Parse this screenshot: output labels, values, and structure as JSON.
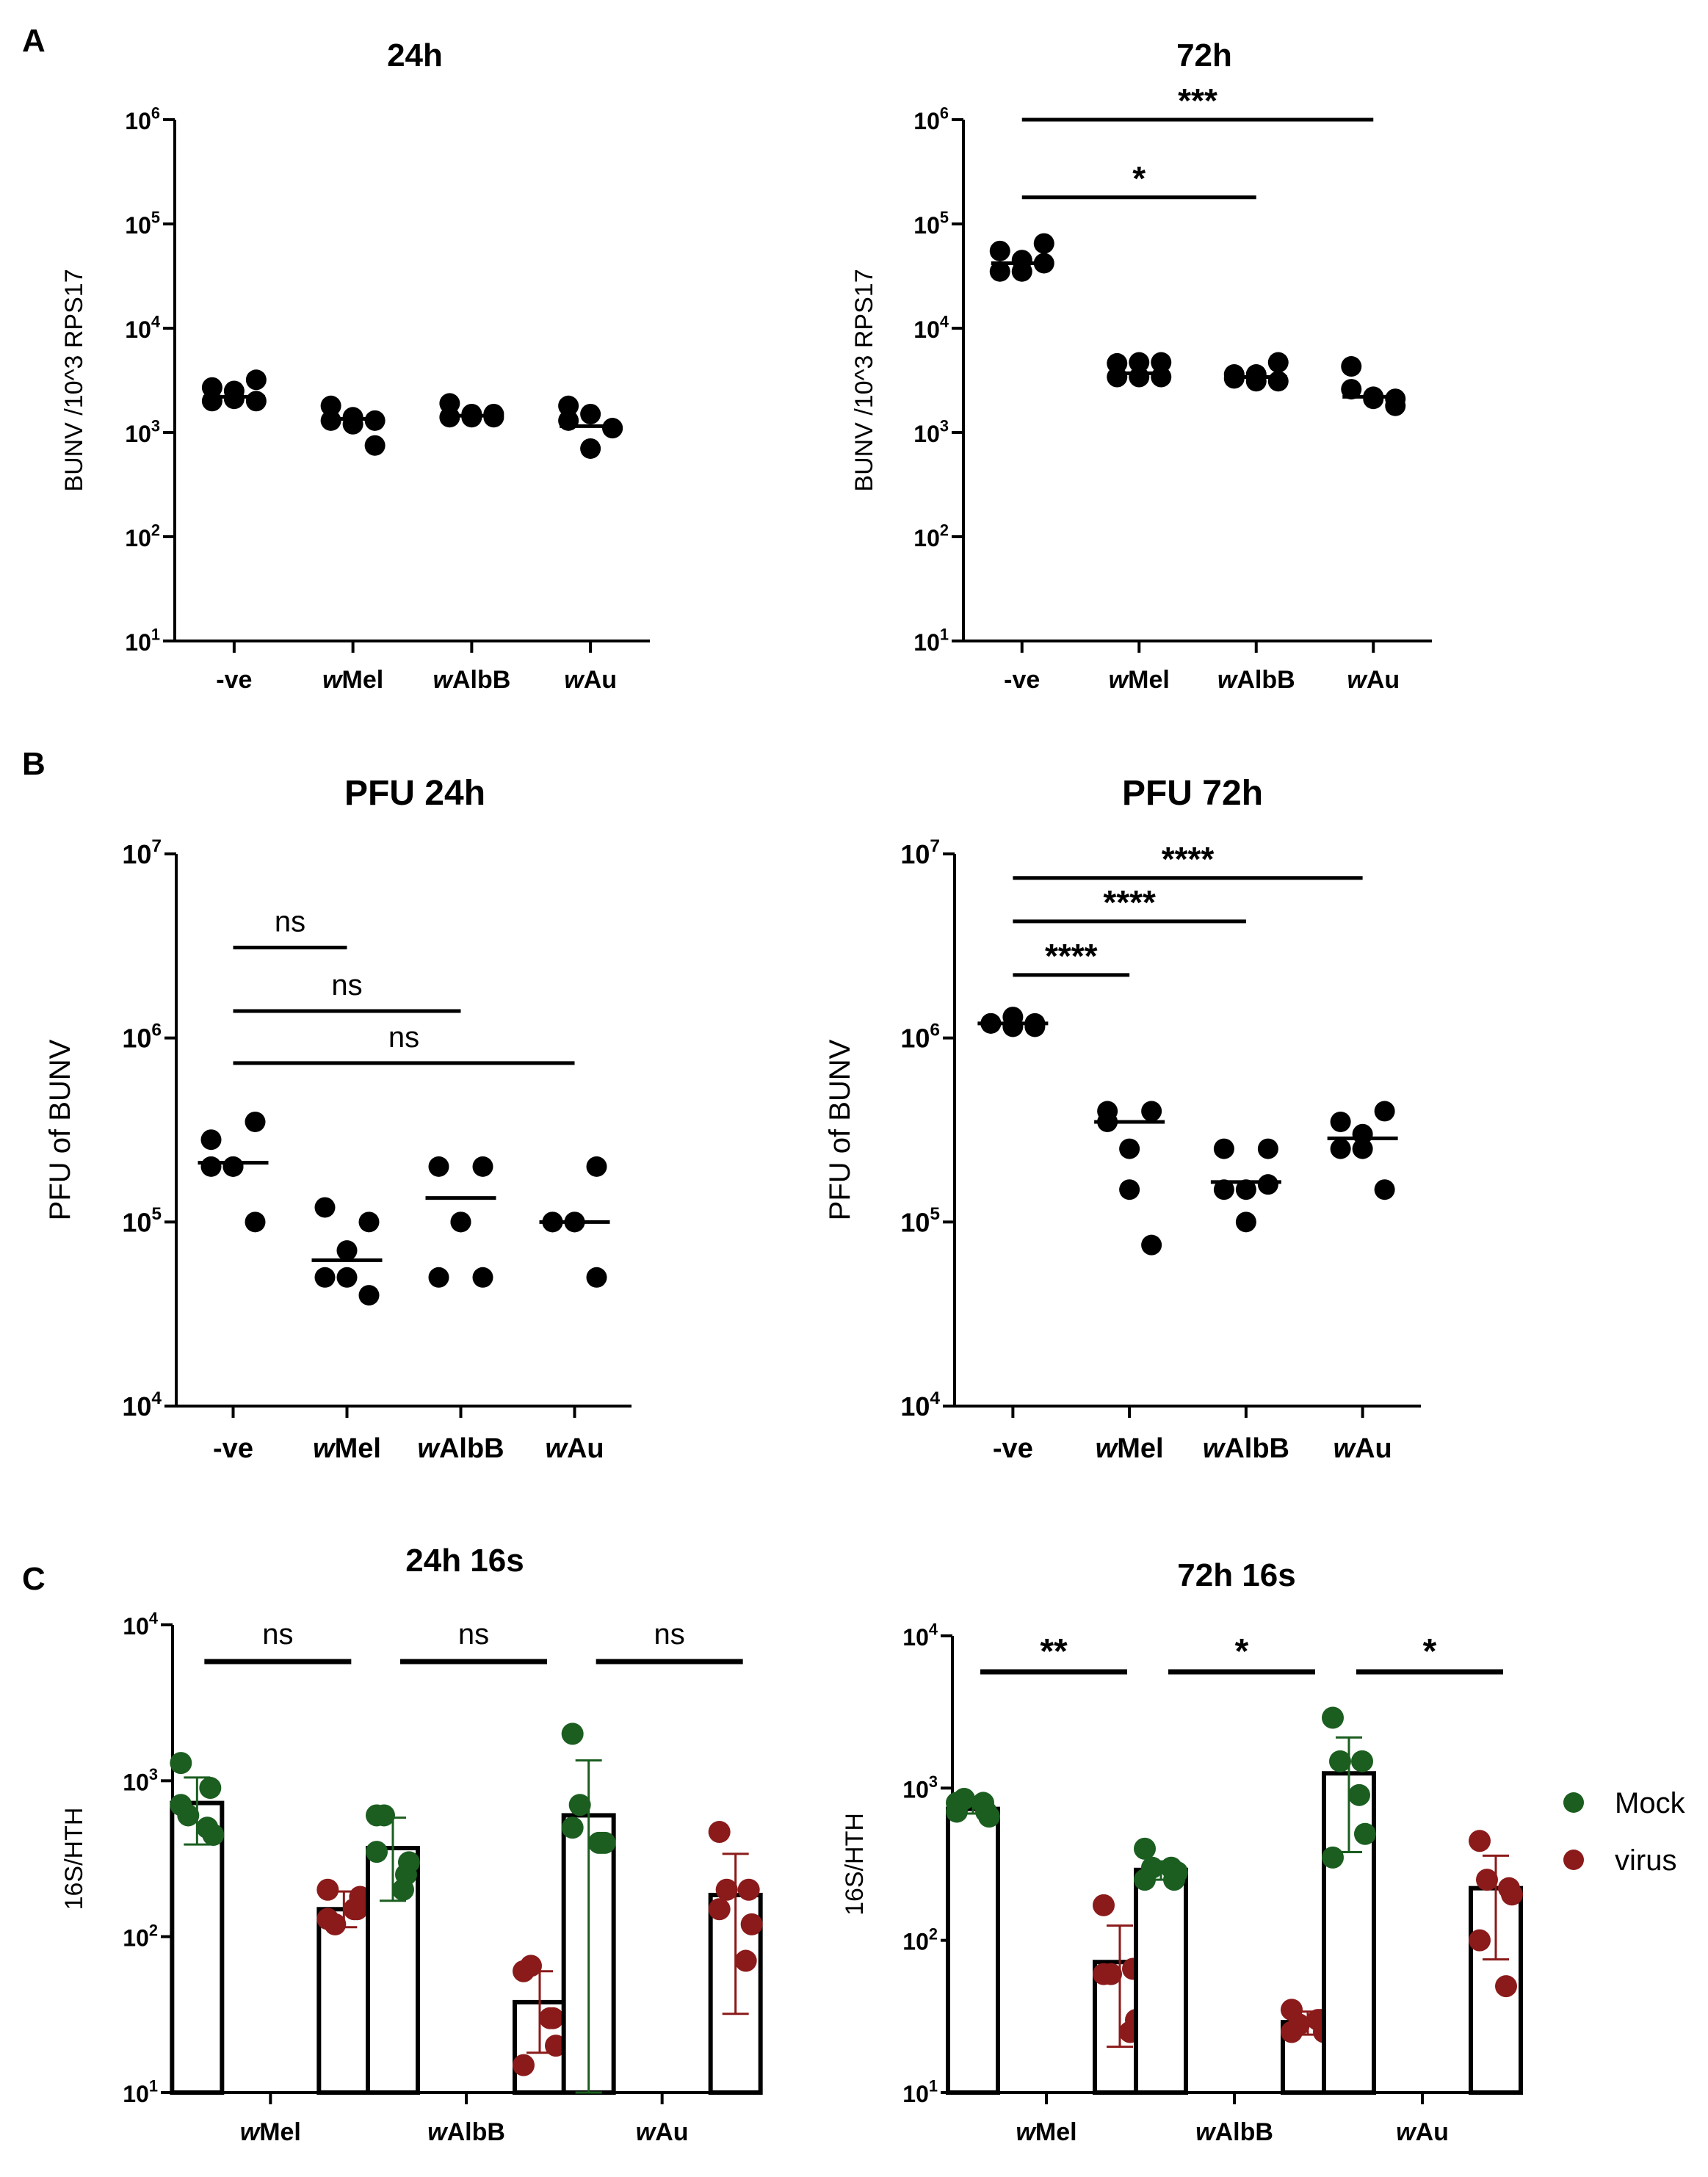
{
  "panel_letters": [
    "A",
    "B",
    "C"
  ],
  "chart_data": [
    {
      "id": "A1",
      "type": "scatter",
      "scale": "log",
      "title": "24h",
      "ylabel": "BUNV /10^3 RPS17",
      "ylim": [
        10,
        1000000
      ],
      "categories": [
        {
          "label": "-ve",
          "italic": "",
          "rest": "-ve"
        },
        {
          "label": "wMel",
          "italic": "w",
          "rest": "Mel"
        },
        {
          "label": "wAlbB",
          "italic": "w",
          "rest": "AlbB"
        },
        {
          "label": "wAu",
          "italic": "w",
          "rest": "Au"
        }
      ],
      "points": [
        [
          2700,
          2100,
          3200,
          2000,
          2500,
          2000
        ],
        [
          1800,
          1200,
          750,
          1300,
          1400,
          1300
        ],
        [
          1900,
          1400,
          1500,
          1400,
          1500,
          1400
        ],
        [
          1300,
          700,
          1100,
          1800,
          1500,
          1100
        ]
      ],
      "means": [
        2200,
        1350,
        1450,
        1150
      ],
      "brackets": []
    },
    {
      "id": "A2",
      "type": "scatter",
      "scale": "log",
      "title": "72h",
      "ylabel": "BUNV /10^3 RPS17",
      "ylim": [
        10,
        1000000
      ],
      "categories": [
        {
          "label": "-ve",
          "italic": "",
          "rest": "-ve"
        },
        {
          "label": "wMel",
          "italic": "w",
          "rest": "Mel"
        },
        {
          "label": "wAlbB",
          "italic": "w",
          "rest": "AlbB"
        },
        {
          "label": "wAu",
          "italic": "w",
          "rest": "Au"
        }
      ],
      "points": [
        [
          55000,
          35000,
          65000,
          35000,
          45000,
          42000
        ],
        [
          4600,
          3400,
          4700,
          3400,
          4700,
          3400
        ],
        [
          3600,
          3100,
          4700,
          3300,
          3600,
          3100
        ],
        [
          2600,
          2100,
          1800,
          4300,
          2200,
          2100
        ]
      ],
      "means": [
        42000,
        3700,
        3400,
        2200
      ],
      "brackets": [
        {
          "from": 0,
          "to": 3,
          "value": 1000000,
          "label": "***"
        },
        {
          "from": 0,
          "to": 2,
          "value": 180000,
          "label": "*"
        }
      ]
    },
    {
      "id": "B1",
      "type": "scatter",
      "scale": "log",
      "title": "PFU 24h",
      "ylabel": "PFU of BUNV",
      "ylim": [
        10000,
        10000000
      ],
      "categories": [
        {
          "label": "-ve",
          "italic": "",
          "rest": "-ve"
        },
        {
          "label": "wMel",
          "italic": "w",
          "rest": "Mel"
        },
        {
          "label": "wAlbB",
          "italic": "w",
          "rest": "AlbB"
        },
        {
          "label": "wAu",
          "italic": "w",
          "rest": "Au"
        }
      ],
      "points": [
        [
          280000,
          200000,
          350000,
          200000,
          200000,
          100000
        ],
        [
          120000,
          50000,
          100000,
          50000,
          70000,
          40000
        ],
        [
          200000,
          100000,
          200000,
          50000,
          100000,
          50000
        ],
        [
          100000,
          100000,
          200000,
          100000,
          100000,
          50000
        ]
      ],
      "means": [
        210000,
        62000,
        135000,
        100000
      ],
      "brackets": [
        {
          "from": 0,
          "to": 1,
          "value": 3100000,
          "label": "ns"
        },
        {
          "from": 0,
          "to": 2,
          "value": 1400000,
          "label": "ns"
        },
        {
          "from": 0,
          "to": 3,
          "value": 730000,
          "label": "ns"
        }
      ]
    },
    {
      "id": "B2",
      "type": "scatter",
      "scale": "log",
      "title": "PFU 72h",
      "ylabel": "PFU of BUNV",
      "ylim": [
        10000,
        10000000
      ],
      "categories": [
        {
          "label": "-ve",
          "italic": "",
          "rest": "-ve"
        },
        {
          "label": "wMel",
          "italic": "w",
          "rest": "Mel"
        },
        {
          "label": "wAlbB",
          "italic": "w",
          "rest": "AlbB"
        },
        {
          "label": "wAu",
          "italic": "w",
          "rest": "Au"
        }
      ],
      "points": [
        [
          1200000,
          1300000,
          1150000,
          1200000,
          1150000,
          1200000
        ],
        [
          400000,
          250000,
          400000,
          350000,
          150000,
          75000
        ],
        [
          250000,
          150000,
          250000,
          150000,
          100000,
          160000
        ],
        [
          350000,
          250000,
          400000,
          250000,
          300000,
          150000
        ]
      ],
      "means": [
        1200000,
        350000,
        165000,
        285000
      ],
      "brackets": [
        {
          "from": 0,
          "to": 3,
          "value": 7400000,
          "label": "****"
        },
        {
          "from": 0,
          "to": 2,
          "value": 4300000,
          "label": "****"
        },
        {
          "from": 0,
          "to": 1,
          "value": 2200000,
          "label": "****"
        }
      ]
    },
    {
      "id": "C1",
      "type": "bar",
      "scale": "log",
      "title": "24h 16s",
      "ylabel": "16S/HTH",
      "ylim": [
        10,
        10000
      ],
      "groups": [
        {
          "italic": "w",
          "rest": "Mel"
        },
        {
          "italic": "w",
          "rest": "AlbB"
        },
        {
          "italic": "w",
          "rest": "Au"
        }
      ],
      "series": [
        {
          "name": "Mock",
          "color": "#1b5e20",
          "bars": [
            {
              "mean": 720,
              "sd_low": 390,
              "sd_high": 1050,
              "points": [
                1300,
                900,
                600,
                450,
                700,
                500
              ]
            },
            {
              "mean": 370,
              "sd_low": 170,
              "sd_high": 580,
              "points": [
                600,
                250,
                600,
                300,
                350,
                200
              ]
            },
            {
              "mean": 600,
              "sd_low": 10,
              "sd_high": 1350,
              "points": [
                2000,
                400,
                700,
                400,
                500,
                400
              ]
            }
          ]
        },
        {
          "name": "virus",
          "color": "#8b1a1a",
          "bars": [
            {
              "mean": 150,
              "sd_low": 115,
              "sd_high": 195,
              "points": [
                200,
                150,
                120,
                180,
                130,
                150
              ]
            },
            {
              "mean": 38,
              "sd_low": 18,
              "sd_high": 60,
              "points": [
                60,
                30,
                65,
                20,
                15,
                30
              ]
            },
            {
              "mean": 185,
              "sd_low": 32,
              "sd_high": 340,
              "points": [
                470,
                200,
                200,
                120,
                150,
                70
              ]
            }
          ]
        }
      ],
      "brackets": [
        {
          "group": 0,
          "label": "ns"
        },
        {
          "group": 1,
          "label": "ns"
        },
        {
          "group": 2,
          "label": "ns"
        }
      ]
    },
    {
      "id": "C2",
      "type": "bar",
      "scale": "log",
      "title": "72h 16s",
      "ylabel": "16S/HTH",
      "ylim": [
        10,
        10000
      ],
      "groups": [
        {
          "italic": "w",
          "rest": "Mel"
        },
        {
          "italic": "w",
          "rest": "AlbB"
        },
        {
          "italic": "w",
          "rest": "Au"
        }
      ],
      "series": [
        {
          "name": "Mock",
          "color": "#1b5e20",
          "bars": [
            {
              "mean": 730,
              "sd_low": 680,
              "sd_high": 790,
              "points": [
                800,
                700,
                850,
                650,
                700,
                800
              ]
            },
            {
              "mean": 290,
              "sd_low": 250,
              "sd_high": 330,
              "points": [
                400,
                250,
                300,
                280,
                250,
                300
              ]
            },
            {
              "mean": 1250,
              "sd_low": 380,
              "sd_high": 2150,
              "points": [
                2900,
                1500,
                1500,
                500,
                350,
                900
              ]
            }
          ]
        },
        {
          "name": "virus",
          "color": "#8b1a1a",
          "bars": [
            {
              "mean": 72,
              "sd_low": 20,
              "sd_high": 125,
              "points": [
                170,
                65,
                60,
                30,
                60,
                25
              ]
            },
            {
              "mean": 29,
              "sd_low": 24,
              "sd_high": 34,
              "points": [
                35,
                30,
                28,
                25,
                25,
                30
              ]
            },
            {
              "mean": 220,
              "sd_low": 75,
              "sd_high": 360,
              "points": [
                450,
                220,
                250,
                200,
                100,
                50
              ]
            }
          ]
        }
      ],
      "brackets": [
        {
          "group": 0,
          "label": "**"
        },
        {
          "group": 1,
          "label": "*"
        },
        {
          "group": 2,
          "label": "*"
        }
      ],
      "legend": [
        {
          "name": "Mock",
          "color": "#1b5e20"
        },
        {
          "name": "virus",
          "color": "#8b1a1a"
        }
      ]
    }
  ]
}
